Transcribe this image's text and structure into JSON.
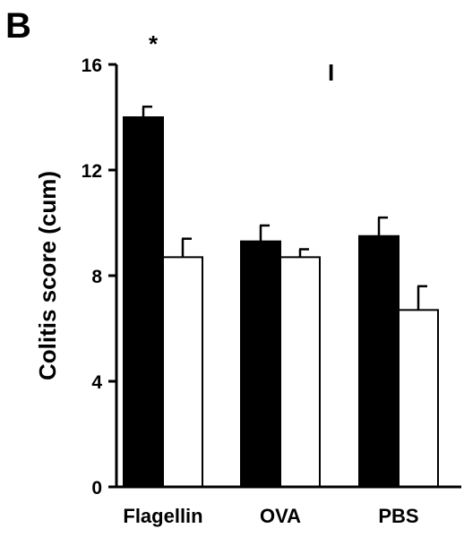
{
  "panel_label": "B",
  "chart_data": {
    "type": "bar",
    "categories": [
      "Flagellin",
      "OVA",
      "PBS"
    ],
    "series": [
      {
        "color": "#000000",
        "values": [
          14.0,
          9.3,
          9.5
        ],
        "errors": [
          0.4,
          0.6,
          0.7
        ]
      },
      {
        "color": "#ffffff",
        "values": [
          8.7,
          8.7,
          6.7
        ],
        "errors": [
          0.7,
          0.3,
          0.9
        ]
      }
    ],
    "xlabel": "",
    "ylabel": "Colitis score (cum)",
    "ylim": [
      0,
      16
    ],
    "yticks": [
      "0",
      "4",
      "8",
      "12",
      "16"
    ],
    "annotations": [
      "*",
      "I"
    ],
    "grid": false,
    "legend": "none"
  }
}
